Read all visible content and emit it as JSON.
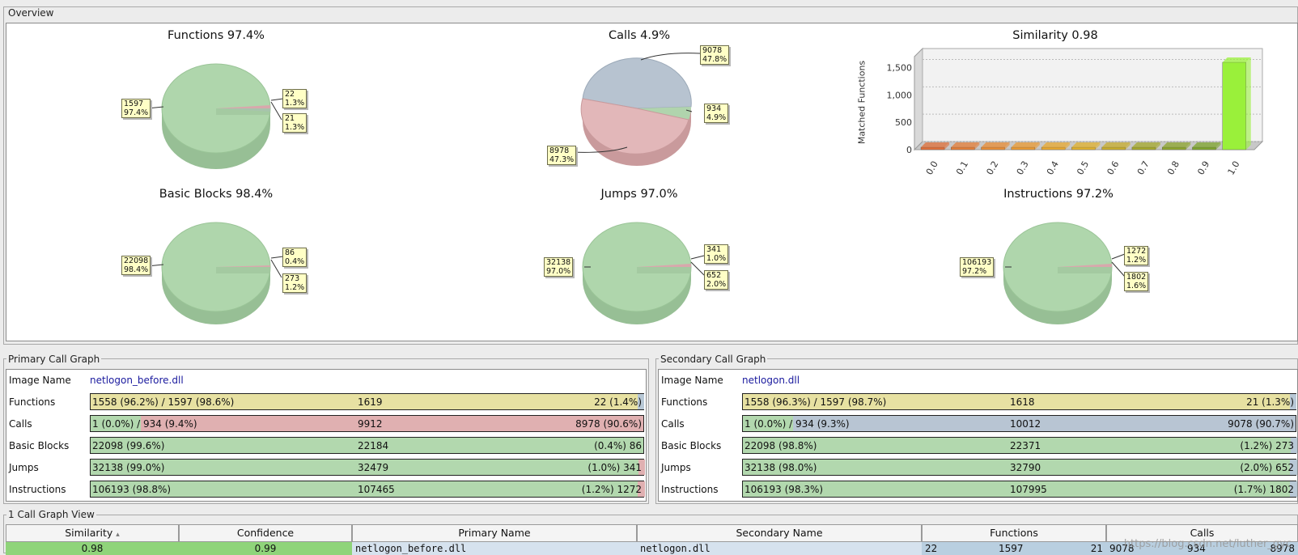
{
  "overview": {
    "legend": "Overview"
  },
  "charts": {
    "functions": {
      "title": "Functions 97.4%",
      "main": {
        "value": "1597",
        "pct": "97.4%"
      },
      "s1": {
        "value": "22",
        "pct": "1.3%"
      },
      "s2": {
        "value": "21",
        "pct": "1.3%"
      }
    },
    "calls": {
      "title": "Calls 4.9%",
      "a": {
        "value": "9078",
        "pct": "47.8%"
      },
      "b": {
        "value": "934",
        "pct": "4.9%"
      },
      "c": {
        "value": "8978",
        "pct": "47.3%"
      }
    },
    "basic_blocks": {
      "title": "Basic Blocks 98.4%",
      "main": {
        "value": "22098",
        "pct": "98.4%"
      },
      "s1": {
        "value": "86",
        "pct": "0.4%"
      },
      "s2": {
        "value": "273",
        "pct": "1.2%"
      }
    },
    "jumps": {
      "title": "Jumps 97.0%",
      "main": {
        "value": "32138",
        "pct": "97.0%"
      },
      "s1": {
        "value": "341",
        "pct": "1.0%"
      },
      "s2": {
        "value": "652",
        "pct": "2.0%"
      }
    },
    "instructions": {
      "title": "Instructions 97.2%",
      "main": {
        "value": "106193",
        "pct": "97.2%"
      },
      "s1": {
        "value": "1272",
        "pct": "1.2%"
      },
      "s2": {
        "value": "1802",
        "pct": "1.6%"
      }
    }
  },
  "chart_data": {
    "type": "bar",
    "title": "Similarity 0.98",
    "ylabel": "Matched Functions",
    "xlabel": "",
    "categories": [
      "0.0",
      "0.1",
      "0.2",
      "0.3",
      "0.4",
      "0.5",
      "0.6",
      "0.7",
      "0.8",
      "0.9",
      "1.0"
    ],
    "values": [
      0,
      0,
      0,
      0,
      0,
      0,
      0,
      0,
      0,
      0,
      1597
    ],
    "yticks": [
      "0",
      "500",
      "1,000",
      "1,500"
    ],
    "ylim": [
      0,
      1700
    ],
    "colors": [
      "#e0703a",
      "#e57f38",
      "#e98e36",
      "#eb9b33",
      "#eaa930",
      "#e1b22e",
      "#c8ae2d",
      "#a6a92c",
      "#8ea62d",
      "#7fa52e",
      "#9af03a"
    ]
  },
  "primary": {
    "legend": "Primary Call Graph",
    "labels": {
      "image": "Image Name",
      "functions": "Functions",
      "calls": "Calls",
      "bb": "Basic Blocks",
      "jumps": "Jumps",
      "instr": "Instructions"
    },
    "image_name": "netlogon_before.dll",
    "functions": {
      "left": "1558 (96.2%) / 1597 (98.6%)",
      "mid": "1619",
      "right": "22 (1.4%)"
    },
    "calls": {
      "left": "1 (0.0%) / 934 (9.4%)",
      "mid": "9912",
      "right": "8978 (90.6%)"
    },
    "bb": {
      "left": "22098 (99.6%)",
      "mid": "22184",
      "right": "(0.4%) 86"
    },
    "jumps": {
      "left": "32138 (99.0%)",
      "mid": "32479",
      "right": "(1.0%) 341"
    },
    "instr": {
      "left": "106193 (98.8%)",
      "mid": "107465",
      "right": "(1.2%) 1272"
    }
  },
  "secondary": {
    "legend": "Secondary Call Graph",
    "labels": {
      "image": "Image Name",
      "functions": "Functions",
      "calls": "Calls",
      "bb": "Basic Blocks",
      "jumps": "Jumps",
      "instr": "Instructions"
    },
    "image_name": "netlogon.dll",
    "functions": {
      "left": "1558 (96.3%) / 1597 (98.7%)",
      "mid": "1618",
      "right": "21 (1.3%)"
    },
    "calls": {
      "left": "1 (0.0%) / 934 (9.3%)",
      "mid": "10012",
      "right": "9078 (90.7%)"
    },
    "bb": {
      "left": "22098 (98.8%)",
      "mid": "22371",
      "right": "(1.2%) 273"
    },
    "jumps": {
      "left": "32138 (98.0%)",
      "mid": "32790",
      "right": "(2.0%) 652"
    },
    "instr": {
      "left": "106193 (98.3%)",
      "mid": "107995",
      "right": "(1.7%) 1802"
    }
  },
  "callgraph": {
    "legend": "1 Call Graph View",
    "columns": [
      "Similarity",
      "Confidence",
      "Primary Name",
      "Secondary Name",
      "Functions",
      "Calls"
    ],
    "sort_glyph": "▴",
    "row": {
      "similarity": "0.98",
      "confidence": "0.99",
      "primary": "netlogon_before.dll",
      "secondary": "netlogon.dll",
      "func_a": "22",
      "func_b": "1597",
      "func_c": "21",
      "calls_a": "9078",
      "calls_b": "934",
      "calls_c": "8978"
    }
  },
  "watermark": "https://blog.csdn.net/luther_gyc"
}
